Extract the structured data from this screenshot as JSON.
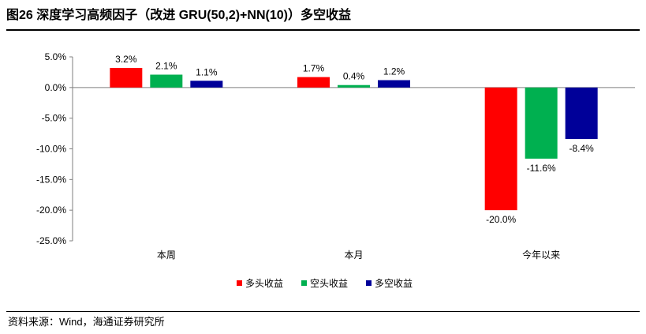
{
  "figure": {
    "title": "图26 深度学习高频因子（改进 GRU(50,2)+NN(10)）多空收益",
    "source": "资料来源：Wind，海通证券研究所"
  },
  "chart_data": {
    "type": "bar",
    "categories": [
      "本周",
      "本月",
      "今年以来"
    ],
    "series": [
      {
        "name": "多头收益",
        "values": [
          3.2,
          1.7,
          -20.0
        ],
        "labels": [
          "3.2%",
          "1.7%",
          "-20.0%"
        ],
        "color": "#ff0000"
      },
      {
        "name": "空头收益",
        "values": [
          2.1,
          0.4,
          -11.6
        ],
        "labels": [
          "2.1%",
          "0.4%",
          "-11.6%"
        ],
        "color": "#00b050"
      },
      {
        "name": "多空收益",
        "values": [
          1.1,
          1.2,
          -8.4
        ],
        "labels": [
          "1.1%",
          "1.2%",
          "-8.4%"
        ],
        "color": "#000099"
      }
    ],
    "ylim": [
      -25,
      5
    ],
    "yticks": [
      5,
      0,
      -5,
      -10,
      -15,
      -20,
      -25
    ],
    "ytick_labels": [
      "5.0%",
      "0.0%",
      "-5.0%",
      "-10.0%",
      "-15.0%",
      "-20.0%",
      "-25.0%"
    ],
    "xlabel": "",
    "ylabel": "",
    "grid": false,
    "legend_position": "bottom"
  }
}
